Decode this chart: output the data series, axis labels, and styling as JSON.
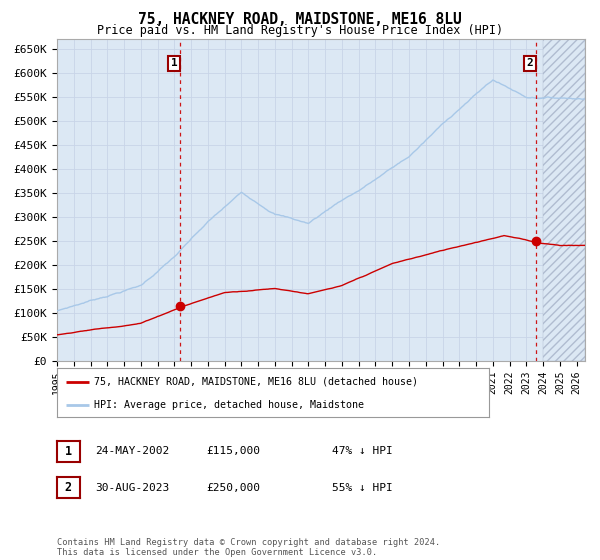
{
  "title": "75, HACKNEY ROAD, MAIDSTONE, ME16 8LU",
  "subtitle": "Price paid vs. HM Land Registry's House Price Index (HPI)",
  "hpi_label": "HPI: Average price, detached house, Maidstone",
  "property_label": "75, HACKNEY ROAD, MAIDSTONE, ME16 8LU (detached house)",
  "purchase1_date": "24-MAY-2002",
  "purchase1_price": 115000,
  "purchase1_note": "47% ↓ HPI",
  "purchase2_date": "30-AUG-2023",
  "purchase2_price": 250000,
  "purchase2_note": "55% ↓ HPI",
  "hpi_color": "#a8c8e8",
  "property_color": "#cc0000",
  "vline_color": "#cc0000",
  "dot_color": "#cc0000",
  "grid_color": "#c8d4e8",
  "plot_bg": "#dce8f4",
  "ylim": [
    0,
    670000
  ],
  "yticks": [
    0,
    50000,
    100000,
    150000,
    200000,
    250000,
    300000,
    350000,
    400000,
    450000,
    500000,
    550000,
    600000,
    650000
  ],
  "xstart": 1995,
  "xend": 2026,
  "footer_text": "Contains HM Land Registry data © Crown copyright and database right 2024.\nThis data is licensed under the Open Government Licence v3.0."
}
